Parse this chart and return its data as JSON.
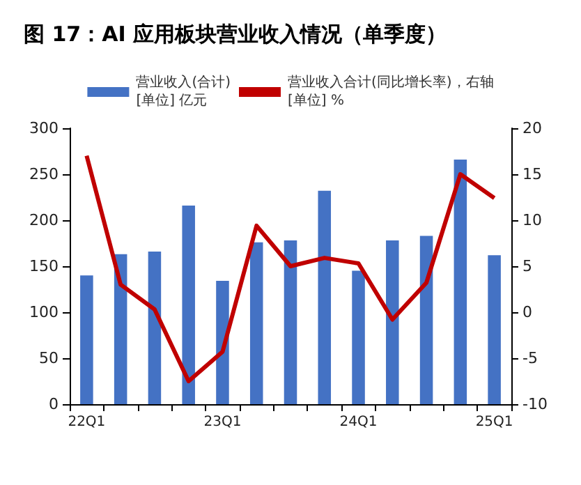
{
  "chart_data": {
    "type": "bar",
    "title": "图 17：AI 应用板块营业收入情况（单季度）",
    "categories": [
      "22Q1",
      null,
      null,
      null,
      "23Q1",
      null,
      null,
      null,
      "24Q1",
      null,
      null,
      null,
      "25Q1"
    ],
    "series": [
      {
        "name": "营业收入(合计)\n[单位] 亿元",
        "color": "#4472c4",
        "values": [
          140,
          163,
          166,
          216,
          134,
          176,
          178,
          232,
          145,
          178,
          183,
          266,
          162
        ]
      },
      {
        "name": "营业收入合计(同比增长率)，右轴\n[单位] %",
        "type": "line",
        "axis": "y2",
        "color": "#c00000",
        "values": [
          17,
          3,
          0.3,
          -7.5,
          -4.3,
          9.4,
          5,
          5.9,
          5.3,
          -0.8,
          3.2,
          15,
          12.4
        ]
      }
    ],
    "ylim": [
      0,
      300
    ],
    "yticks": [
      0,
      50,
      100,
      150,
      200,
      250,
      300
    ],
    "y2lim": [
      -10,
      20
    ],
    "y2ticks": [
      -10,
      -5,
      0,
      5,
      10,
      15,
      20
    ],
    "legend": "top",
    "grid": false,
    "marker": "none",
    "line_style": "solid"
  }
}
